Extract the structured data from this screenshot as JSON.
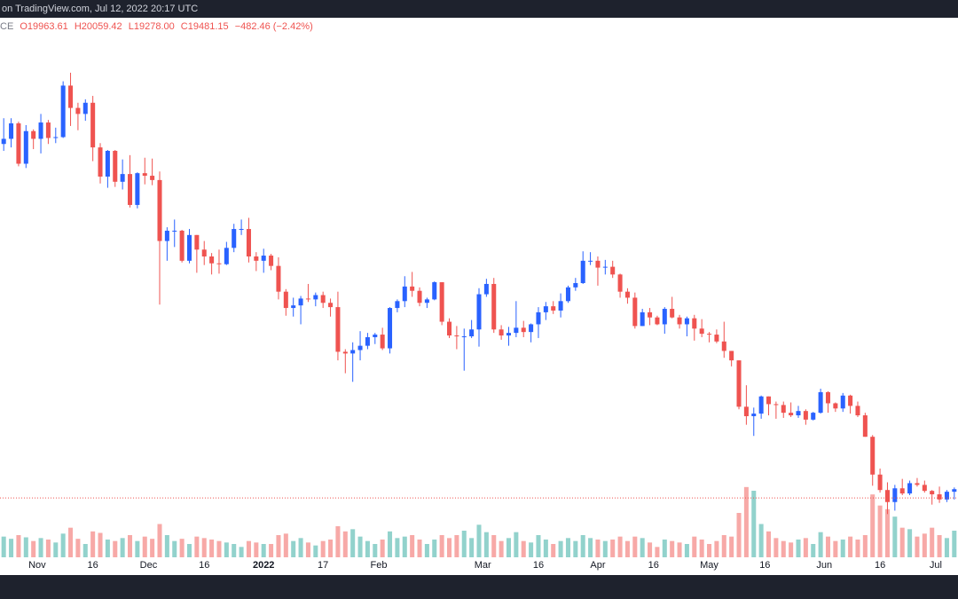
{
  "header": {
    "source": "on TradingView.com, Jul 12, 2022 20:17 UTC",
    "symbol": "CE",
    "open": "O19963.61",
    "high": "H20059.42",
    "low": "L19278.00",
    "close": "C19481.15",
    "change": "−482.46 (−2.42%)"
  },
  "chart_data": {
    "type": "candlestick",
    "up_color": "#2962ff",
    "down_color": "#ef5350",
    "volume_up_color": "#26a69a",
    "volume_down_color": "#ef5350",
    "xlim": [
      "2021-10-22",
      "2022-07-07"
    ],
    "ylim": [
      10500,
      75400
    ],
    "vlim": [
      0,
      120
    ],
    "last_price": 19481.15,
    "xticks": [
      {
        "value": "2021-11-01",
        "label": "Nov"
      },
      {
        "value": "2021-11-16",
        "label": "16"
      },
      {
        "value": "2021-12-01",
        "label": "Dec"
      },
      {
        "value": "2021-12-16",
        "label": "16"
      },
      {
        "value": "2022-01-01",
        "label": "2022"
      },
      {
        "value": "2022-01-17",
        "label": "17"
      },
      {
        "value": "2022-02-01",
        "label": "Feb"
      },
      {
        "value": "2022-03-01",
        "label": "Mar"
      },
      {
        "value": "2022-03-16",
        "label": "16"
      },
      {
        "value": "2022-04-01",
        "label": "Apr"
      },
      {
        "value": "2022-04-16",
        "label": "16"
      },
      {
        "value": "2022-05-01",
        "label": "May"
      },
      {
        "value": "2022-05-16",
        "label": "16"
      },
      {
        "value": "2022-06-01",
        "label": "Jun"
      },
      {
        "value": "2022-06-16",
        "label": "16"
      },
      {
        "value": "2022-07-01",
        "label": "Jul"
      }
    ],
    "x": [
      "2021-10-22",
      "2021-10-24",
      "2021-10-26",
      "2021-10-28",
      "2021-10-30",
      "2021-11-01",
      "2021-11-03",
      "2021-11-05",
      "2021-11-07",
      "2021-11-09",
      "2021-11-11",
      "2021-11-13",
      "2021-11-15",
      "2021-11-17",
      "2021-11-19",
      "2021-11-21",
      "2021-11-23",
      "2021-11-25",
      "2021-11-27",
      "2021-11-29",
      "2021-12-01",
      "2021-12-03",
      "2021-12-05",
      "2021-12-07",
      "2021-12-09",
      "2021-12-11",
      "2021-12-13",
      "2021-12-15",
      "2021-12-17",
      "2021-12-19",
      "2021-12-21",
      "2021-12-23",
      "2021-12-25",
      "2021-12-27",
      "2021-12-29",
      "2021-12-31",
      "2022-01-02",
      "2022-01-04",
      "2022-01-06",
      "2022-01-08",
      "2022-01-10",
      "2022-01-12",
      "2022-01-14",
      "2022-01-16",
      "2022-01-18",
      "2022-01-20",
      "2022-01-22",
      "2022-01-24",
      "2022-01-26",
      "2022-01-28",
      "2022-01-30",
      "2022-02-01",
      "2022-02-03",
      "2022-02-05",
      "2022-02-07",
      "2022-02-09",
      "2022-02-11",
      "2022-02-13",
      "2022-02-15",
      "2022-02-17",
      "2022-02-19",
      "2022-02-21",
      "2022-02-23",
      "2022-02-25",
      "2022-02-27",
      "2022-03-01",
      "2022-03-03",
      "2022-03-05",
      "2022-03-07",
      "2022-03-09",
      "2022-03-11",
      "2022-03-13",
      "2022-03-15",
      "2022-03-17",
      "2022-03-19",
      "2022-03-21",
      "2022-03-23",
      "2022-03-25",
      "2022-03-27",
      "2022-03-29",
      "2022-03-31",
      "2022-04-02",
      "2022-04-04",
      "2022-04-06",
      "2022-04-08",
      "2022-04-10",
      "2022-04-12",
      "2022-04-14",
      "2022-04-16",
      "2022-04-18",
      "2022-04-20",
      "2022-04-22",
      "2022-04-24",
      "2022-04-26",
      "2022-04-28",
      "2022-04-30",
      "2022-05-02",
      "2022-05-04",
      "2022-05-06",
      "2022-05-08",
      "2022-05-10",
      "2022-05-12",
      "2022-05-14",
      "2022-05-16",
      "2022-05-18",
      "2022-05-20",
      "2022-05-22",
      "2022-05-24",
      "2022-05-26",
      "2022-05-28",
      "2022-05-30",
      "2022-06-01",
      "2022-06-03",
      "2022-06-05",
      "2022-06-07",
      "2022-06-09",
      "2022-06-11",
      "2022-06-13",
      "2022-06-15",
      "2022-06-17",
      "2022-06-19",
      "2022-06-21",
      "2022-06-23",
      "2022-06-25",
      "2022-06-27",
      "2022-06-29",
      "2022-07-01",
      "2022-07-03",
      "2022-07-05"
    ],
    "ohlc": [
      [
        60700,
        63700,
        59900,
        61300
      ],
      [
        61300,
        63700,
        60300,
        63100
      ],
      [
        63100,
        63300,
        58100,
        58400
      ],
      [
        58400,
        62900,
        57900,
        62200
      ],
      [
        62200,
        62400,
        60100,
        61300
      ],
      [
        61300,
        64200,
        59600,
        63200
      ],
      [
        63200,
        63500,
        60700,
        61400
      ],
      [
        61400,
        62600,
        60800,
        61500
      ],
      [
        61500,
        68000,
        61400,
        67500
      ],
      [
        67500,
        69000,
        62800,
        64900
      ],
      [
        64900,
        65500,
        62300,
        64200
      ],
      [
        64200,
        65900,
        63400,
        65500
      ],
      [
        65500,
        66300,
        58700,
        60300
      ],
      [
        60300,
        60800,
        56100,
        56900
      ],
      [
        56900,
        60000,
        55600,
        59900
      ],
      [
        59900,
        60000,
        55700,
        56300
      ],
      [
        56300,
        58900,
        55400,
        57200
      ],
      [
        57200,
        59400,
        53300,
        53600
      ],
      [
        53600,
        57400,
        53200,
        57300
      ],
      [
        57300,
        59100,
        56000,
        57000
      ],
      [
        57000,
        59000,
        55900,
        56500
      ],
      [
        56500,
        57500,
        42000,
        49400
      ],
      [
        49400,
        51000,
        47100,
        50600
      ],
      [
        50600,
        51900,
        48700,
        50600
      ],
      [
        50600,
        50700,
        46900,
        47100
      ],
      [
        47100,
        50800,
        46800,
        50100
      ],
      [
        50100,
        50100,
        45700,
        48400
      ],
      [
        48400,
        49400,
        46600,
        47600
      ],
      [
        47600,
        48000,
        45500,
        46800
      ],
      [
        46800,
        48400,
        45600,
        46700
      ],
      [
        46700,
        49300,
        46600,
        48600
      ],
      [
        48600,
        51400,
        48100,
        50800
      ],
      [
        50800,
        51900,
        50100,
        50800
      ],
      [
        50800,
        52100,
        46900,
        47600
      ],
      [
        47600,
        48100,
        45900,
        47100
      ],
      [
        47100,
        48500,
        45700,
        47700
      ],
      [
        47700,
        47900,
        46000,
        46500
      ],
      [
        46500,
        47500,
        42600,
        43500
      ],
      [
        43500,
        43800,
        40700,
        41600
      ],
      [
        41600,
        42800,
        40600,
        41900
      ],
      [
        41900,
        43000,
        39700,
        42700
      ],
      [
        42700,
        44400,
        42300,
        42600
      ],
      [
        42600,
        43400,
        41800,
        43100
      ],
      [
        43100,
        43500,
        41600,
        42200
      ],
      [
        42200,
        42700,
        40600,
        41700
      ],
      [
        41700,
        43500,
        35500,
        36500
      ],
      [
        36500,
        36800,
        34000,
        36300
      ],
      [
        36300,
        37600,
        33000,
        36700
      ],
      [
        36700,
        38900,
        35500,
        37200
      ],
      [
        37200,
        38700,
        36800,
        38200
      ],
      [
        38200,
        38700,
        37400,
        38500
      ],
      [
        38500,
        39300,
        36700,
        36900
      ],
      [
        36900,
        41700,
        36300,
        41600
      ],
      [
        41600,
        42600,
        41100,
        42400
      ],
      [
        42400,
        45300,
        41700,
        44100
      ],
      [
        44100,
        45800,
        42900,
        43600
      ],
      [
        43600,
        44000,
        41800,
        42200
      ],
      [
        42200,
        42800,
        41600,
        42600
      ],
      [
        42600,
        44700,
        42500,
        44600
      ],
      [
        44600,
        44600,
        39600,
        40000
      ],
      [
        40000,
        40400,
        38100,
        38400
      ],
      [
        38400,
        39500,
        36800,
        38300
      ],
      [
        38300,
        39200,
        34300,
        38300
      ],
      [
        38300,
        40200,
        38100,
        39100
      ],
      [
        39100,
        43900,
        37100,
        43200
      ],
      [
        43200,
        45000,
        42900,
        44400
      ],
      [
        44400,
        45100,
        38700,
        39100
      ],
      [
        39100,
        39600,
        37900,
        38400
      ],
      [
        38400,
        39400,
        37200,
        38700
      ],
      [
        38700,
        42400,
        38200,
        39300
      ],
      [
        39300,
        40100,
        38200,
        38800
      ],
      [
        38800,
        39800,
        37600,
        39700
      ],
      [
        39700,
        41700,
        38100,
        41100
      ],
      [
        41100,
        42300,
        40200,
        41800
      ],
      [
        41800,
        42400,
        40900,
        41300
      ],
      [
        41300,
        43300,
        40500,
        42400
      ],
      [
        42400,
        44200,
        42200,
        44000
      ],
      [
        44000,
        45100,
        43600,
        44500
      ],
      [
        44500,
        48200,
        44400,
        47100
      ],
      [
        47100,
        48100,
        46600,
        47100
      ],
      [
        47100,
        47600,
        44200,
        46300
      ],
      [
        46300,
        47200,
        45500,
        46400
      ],
      [
        46400,
        47100,
        45100,
        45500
      ],
      [
        45500,
        45600,
        42800,
        43500
      ],
      [
        43500,
        43900,
        42100,
        42800
      ],
      [
        42800,
        43400,
        39200,
        39500
      ],
      [
        39500,
        41500,
        39500,
        41100
      ],
      [
        41100,
        41600,
        39600,
        40500
      ],
      [
        40500,
        40700,
        39600,
        39700
      ],
      [
        39700,
        41700,
        38600,
        41500
      ],
      [
        41500,
        42900,
        40400,
        40500
      ],
      [
        40500,
        40800,
        39200,
        39700
      ],
      [
        39700,
        40600,
        38300,
        40400
      ],
      [
        40400,
        40800,
        37800,
        39200
      ],
      [
        39200,
        40300,
        38200,
        38600
      ],
      [
        38600,
        38800,
        37600,
        38500
      ],
      [
        38500,
        39100,
        37500,
        37700
      ],
      [
        37700,
        40000,
        35800,
        36600
      ],
      [
        36600,
        36600,
        34800,
        35500
      ],
      [
        35500,
        35500,
        29800,
        30100
      ],
      [
        30100,
        32600,
        28000,
        29000
      ],
      [
        29000,
        30000,
        26700,
        29300
      ],
      [
        29300,
        31400,
        28700,
        31300
      ],
      [
        31300,
        31300,
        29100,
        30400
      ],
      [
        30400,
        30700,
        28700,
        30300
      ],
      [
        30300,
        30700,
        28800,
        29400
      ],
      [
        29400,
        30600,
        28900,
        29100
      ],
      [
        29100,
        30200,
        28800,
        29600
      ],
      [
        29600,
        29800,
        28000,
        28600
      ],
      [
        28600,
        29500,
        28500,
        29400
      ],
      [
        29400,
        32200,
        29300,
        31800
      ],
      [
        31800,
        31900,
        29400,
        30500
      ],
      [
        30500,
        30600,
        29500,
        29900
      ],
      [
        29900,
        31700,
        29500,
        31400
      ],
      [
        31400,
        31500,
        29300,
        30200
      ],
      [
        30200,
        30700,
        28900,
        29100
      ],
      [
        29100,
        29400,
        26600,
        26600
      ],
      [
        26600,
        26800,
        20900,
        22200
      ],
      [
        22200,
        22900,
        20100,
        20400
      ],
      [
        20400,
        21300,
        17600,
        19000
      ],
      [
        19000,
        21000,
        18000,
        20600
      ],
      [
        20600,
        21700,
        19800,
        20000
      ],
      [
        20000,
        21500,
        19800,
        21200
      ],
      [
        21200,
        21800,
        20800,
        21000
      ],
      [
        21000,
        21500,
        20100,
        20300
      ],
      [
        20300,
        20400,
        18700,
        19900
      ],
      [
        19900,
        20800,
        18900,
        19300
      ],
      [
        19300,
        20400,
        19000,
        20200
      ],
      [
        20200,
        20700,
        19300,
        20500
      ]
    ],
    "volume": [
      28,
      25,
      30,
      27,
      22,
      26,
      24,
      20,
      32,
      40,
      25,
      18,
      35,
      33,
      24,
      22,
      26,
      30,
      22,
      28,
      25,
      45,
      30,
      22,
      25,
      18,
      28,
      26,
      24,
      22,
      20,
      18,
      14,
      22,
      20,
      18,
      18,
      30,
      32,
      22,
      26,
      20,
      16,
      22,
      24,
      42,
      35,
      38,
      28,
      22,
      18,
      24,
      35,
      26,
      28,
      30,
      24,
      18,
      24,
      30,
      26,
      30,
      36,
      26,
      44,
      34,
      30,
      22,
      26,
      34,
      22,
      20,
      30,
      24,
      18,
      22,
      26,
      22,
      30,
      26,
      24,
      22,
      24,
      28,
      22,
      28,
      26,
      20,
      14,
      24,
      22,
      20,
      18,
      28,
      24,
      18,
      22,
      30,
      28,
      60,
      95,
      90,
      45,
      35,
      26,
      22,
      20,
      24,
      26,
      18,
      34,
      28,
      22,
      24,
      28,
      24,
      30,
      85,
      70,
      65,
      55,
      40,
      38,
      28,
      32,
      40,
      30,
      26,
      36
    ]
  }
}
